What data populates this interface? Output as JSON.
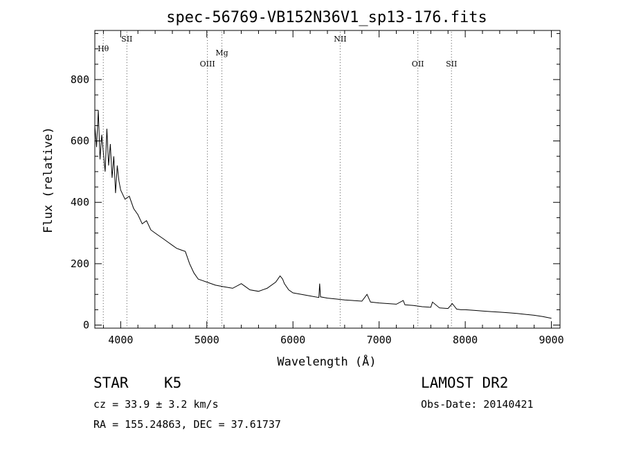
{
  "chart_data": {
    "type": "line",
    "title": "spec-56769-VB152N36V1_sp13-176.fits",
    "xlabel": "Wavelength (Å)",
    "ylabel": "Flux (relative)",
    "xlim": [
      3700,
      9100
    ],
    "ylim": [
      -10,
      960
    ],
    "x_ticks": [
      4000,
      5000,
      6000,
      7000,
      8000,
      9000
    ],
    "x_tick_labels": [
      "4000",
      "5000",
      "6000",
      "7000",
      "8000",
      "9000"
    ],
    "y_ticks": [
      0,
      200,
      400,
      600,
      800
    ],
    "y_tick_labels": [
      "0",
      "200",
      "400",
      "600",
      "800"
    ],
    "grid": false,
    "color": "#000000",
    "lines": [
      {
        "label": "Hθ",
        "wavelength": 3798
      },
      {
        "label": "SII",
        "wavelength": 4072
      },
      {
        "label": "OIII",
        "wavelength": 5007
      },
      {
        "label": "Mg",
        "wavelength": 5175
      },
      {
        "label": "NII",
        "wavelength": 6548
      },
      {
        "label": "OII",
        "wavelength": 7450
      },
      {
        "label": "SII",
        "wavelength": 7840
      }
    ],
    "series": [
      {
        "x": [
          3700,
          3720,
          3740,
          3760,
          3780,
          3800,
          3820,
          3840,
          3860,
          3880,
          3900,
          3920,
          3940,
          3960,
          3980,
          4000,
          4050,
          4100,
          4150,
          4200,
          4250,
          4300,
          4350,
          4400,
          4450,
          4500,
          4550,
          4600,
          4650,
          4700,
          4750,
          4800,
          4850,
          4900,
          4950,
          5000,
          5100,
          5200,
          5300,
          5400,
          5450,
          5500,
          5600,
          5700,
          5800,
          5850,
          5880,
          5900,
          5950,
          6000,
          6100,
          6200,
          6300,
          6310,
          6320,
          6400,
          6500,
          6600,
          6700,
          6800,
          6860,
          6900,
          7000,
          7100,
          7200,
          7280,
          7300,
          7400,
          7500,
          7600,
          7620,
          7700,
          7800,
          7850,
          7900,
          7950,
          8000,
          8100,
          8200,
          8300,
          8400,
          8500,
          8600,
          8700,
          8800,
          8900,
          9000
        ],
        "y": [
          650,
          580,
          700,
          540,
          620,
          560,
          500,
          640,
          520,
          590,
          480,
          550,
          430,
          520,
          470,
          440,
          410,
          420,
          380,
          360,
          330,
          340,
          310,
          300,
          290,
          280,
          270,
          260,
          250,
          245,
          240,
          200,
          170,
          150,
          145,
          140,
          130,
          125,
          120,
          135,
          125,
          115,
          110,
          120,
          140,
          160,
          150,
          135,
          115,
          105,
          100,
          95,
          90,
          135,
          92,
          88,
          85,
          82,
          80,
          78,
          100,
          75,
          72,
          70,
          68,
          80,
          66,
          64,
          60,
          58,
          75,
          56,
          54,
          70,
          52,
          50,
          50,
          48,
          46,
          44,
          42,
          40,
          38,
          35,
          32,
          28,
          22
        ]
      }
    ]
  },
  "info": {
    "object_class": "STAR",
    "subclass": "K5",
    "survey": "LAMOST DR2",
    "redshift": "cz = 33.9 ± 3.2 km/s",
    "obs_date": "Obs-Date: 20140421",
    "coords": "RA = 155.24863, DEC =  37.61737"
  }
}
